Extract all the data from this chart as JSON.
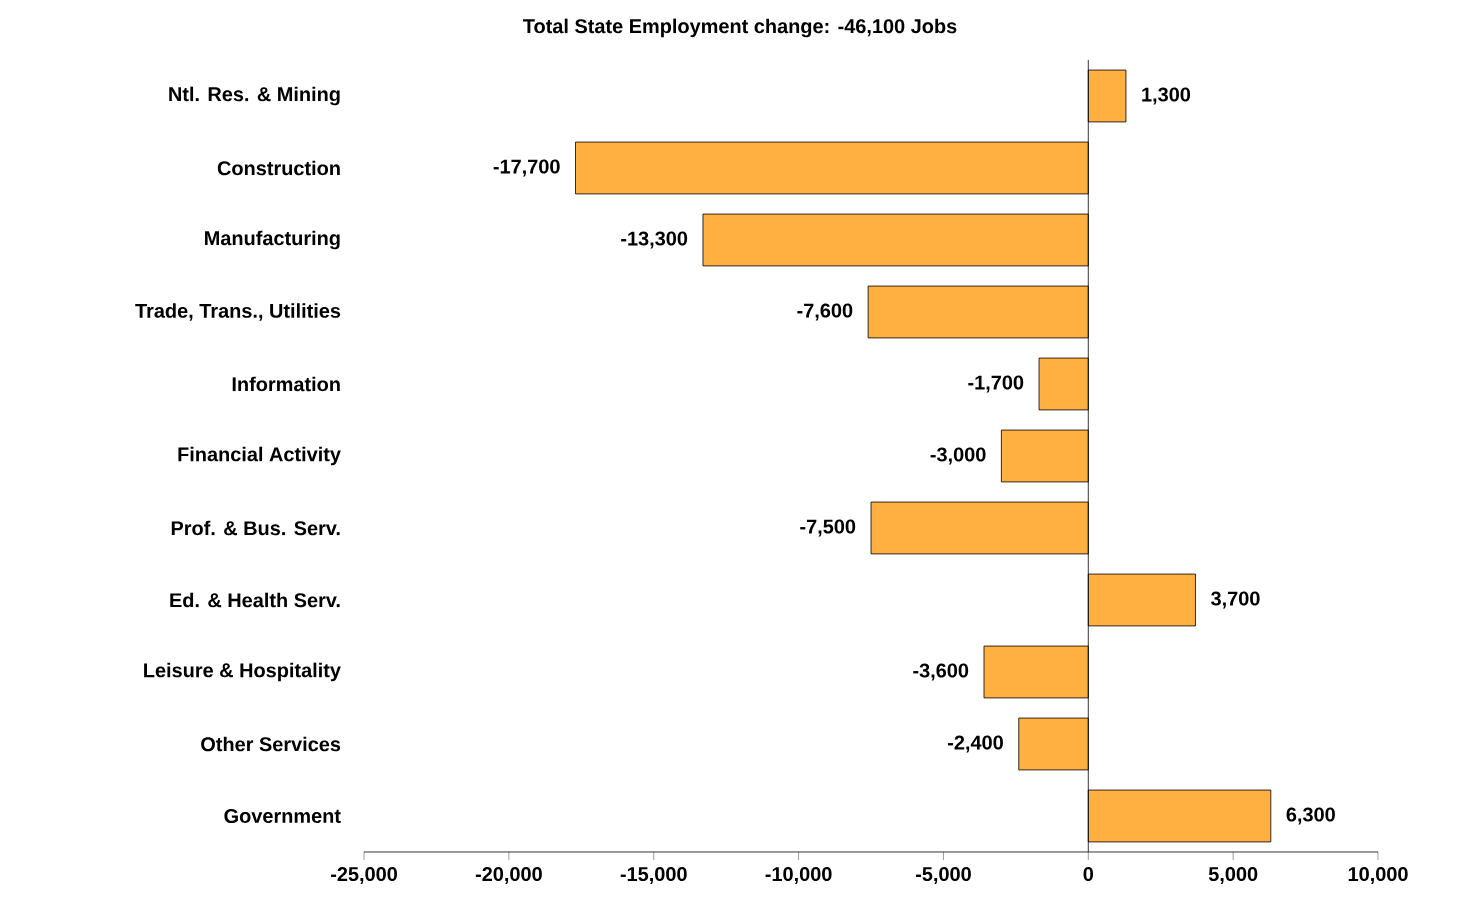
{
  "chart_data": {
    "type": "bar",
    "orientation": "horizontal",
    "title": "Total State Employment change: -46,100 Jobs",
    "categories": [
      "Ntl. Res. & Mining",
      "Construction",
      "Manufacturing",
      "Trade, Trans., Utilities",
      "Information",
      "Financial Activity",
      "Prof. & Bus. Serv.",
      "Ed. & Health Serv.",
      "Leisure & Hospitality",
      "Other Services",
      "Government"
    ],
    "values": [
      1300,
      -17700,
      -13300,
      -7600,
      -1700,
      -3000,
      -7500,
      3700,
      -3600,
      -2400,
      6300
    ],
    "value_labels": [
      "1,300",
      "-17,700",
      "-13,300",
      "-7,600",
      "-1,700",
      "-3,000",
      "-7,500",
      "3,700",
      "-3,600",
      "-2,400",
      "6,300"
    ],
    "color": "#ffb040",
    "xlim": [
      -25000,
      10000
    ],
    "xticks": [
      {
        "value": -25000,
        "label": "-25,000"
      },
      {
        "value": -20000,
        "label": "-20,000"
      },
      {
        "value": -15000,
        "label": "-15,000"
      },
      {
        "value": -10000,
        "label": "-10,000"
      },
      {
        "value": -5000,
        "label": "-5,000"
      },
      {
        "value": 0,
        "label": "0"
      },
      {
        "value": 5000,
        "label": "5,000"
      },
      {
        "value": 10000,
        "label": "10,000"
      }
    ]
  }
}
